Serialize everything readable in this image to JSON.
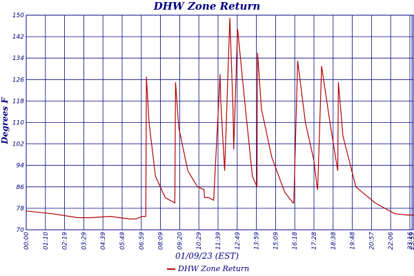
{
  "chart_data": {
    "type": "line",
    "title": "DHW Zone Return",
    "xlabel": "01/09/23 (EST)",
    "ylabel": "Degrees F",
    "ylim": [
      70,
      150
    ],
    "yticks": [
      70,
      78,
      86,
      94,
      102,
      110,
      118,
      126,
      134,
      142,
      150
    ],
    "xticks": [
      "00:00",
      "01:10",
      "02:19",
      "03:29",
      "04:39",
      "05:49",
      "06:59",
      "08:09",
      "09:20",
      "10:29",
      "11:39",
      "12:49",
      "13:59",
      "15:09",
      "16:18",
      "17:28",
      "18:38",
      "19:48",
      "20:57",
      "22:06",
      "23:16",
      "23:59"
    ],
    "grid": true,
    "legend_position": "bottom",
    "series": [
      {
        "name": "DHW Zone Return",
        "color": "#b00000",
        "x": [
          0,
          40,
          80,
          100,
          130,
          160,
          170,
          180,
          185,
          186,
          190,
          200,
          215,
          230,
          231,
          236,
          250,
          265,
          275,
          276,
          282,
          290,
          300,
          301,
          307,
          315,
          320,
          321,
          327,
          338,
          350,
          357,
          358,
          364,
          380,
          400,
          413,
          414,
          420,
          432,
          445,
          450,
          451,
          457,
          470,
          482,
          483,
          490,
          510,
          540,
          570,
          590,
          600
        ],
        "y": [
          77,
          76,
          74.5,
          74.5,
          75,
          74,
          74,
          75,
          75,
          127,
          110,
          90,
          82,
          80,
          125,
          108,
          92,
          86,
          85,
          82,
          82,
          81,
          128,
          118,
          92,
          149,
          115,
          100,
          145,
          118,
          90,
          86,
          136,
          115,
          97,
          84,
          80,
          80,
          133,
          110,
          96,
          86,
          85,
          131,
          110,
          92,
          125,
          105,
          86,
          80,
          76,
          75.5,
          75.5
        ]
      }
    ]
  }
}
